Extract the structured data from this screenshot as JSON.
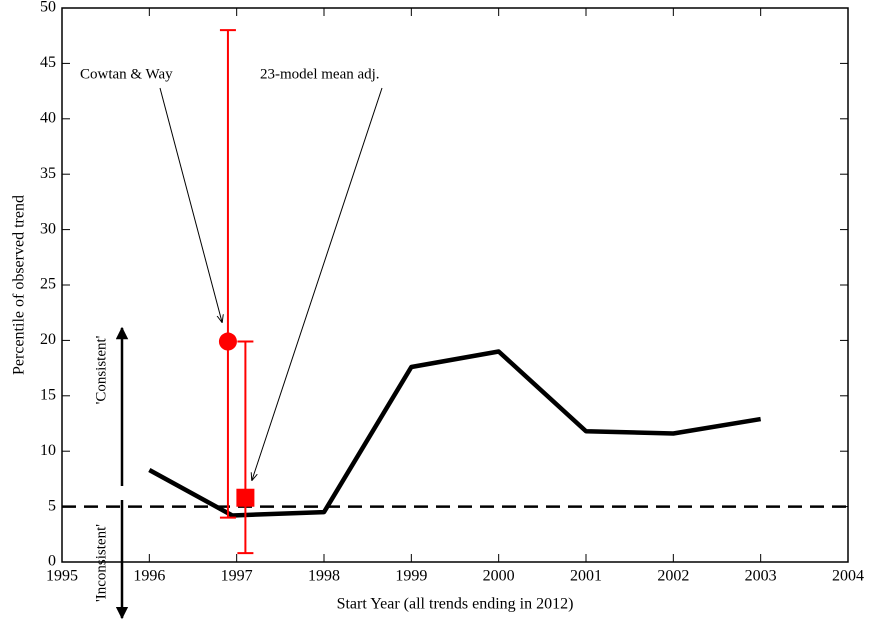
{
  "chart_data": {
    "type": "line",
    "x_label": "Start Year (all trends ending in 2012)",
    "y_label": "Percentile of observed trend",
    "xlim": [
      1995,
      2004
    ],
    "ylim": [
      0,
      50
    ],
    "xticks": [
      1995,
      1996,
      1997,
      1998,
      1999,
      2000,
      2001,
      2002,
      2003,
      2004
    ],
    "yticks": [
      0,
      5,
      10,
      15,
      20,
      25,
      30,
      35,
      40,
      45,
      50
    ],
    "series": [
      {
        "color": "#000000",
        "x": [
          1996,
          1996.95,
          1998,
          1999,
          2000,
          2001,
          2002,
          2003
        ],
        "values": [
          8.3,
          4.2,
          4.5,
          17.6,
          19,
          11.8,
          11.6,
          12.9
        ]
      }
    ],
    "reference_line": {
      "value": 5,
      "style": "dashed",
      "color": "#000000"
    },
    "points": [
      {
        "label": "Cowtan & Way",
        "marker": "circle",
        "color": "#ff0000",
        "x": 1996.9,
        "value": 19.9,
        "low": 4,
        "high": 48
      },
      {
        "label": "23-model mean adj.",
        "marker": "square",
        "color": "#ff0000",
        "x": 1997.1,
        "value": 5.8,
        "low": 0.8,
        "high": 19.9
      }
    ],
    "annotations": [
      "'Consistent'",
      "'Inconsistent'"
    ]
  }
}
